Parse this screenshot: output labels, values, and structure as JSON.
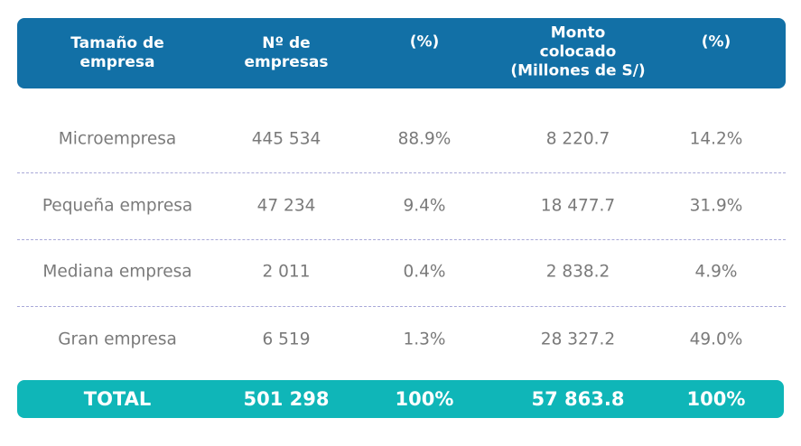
{
  "colors": {
    "header": "#1270a6",
    "total": "#0fb6b8",
    "text": "#7a7a7a",
    "divider": "#a8a8d8"
  },
  "headers": [
    [
      "Tamaño de",
      "empresa"
    ],
    [
      "Nº de",
      "empresas"
    ],
    [
      "(%)"
    ],
    [
      "Monto",
      "colocado",
      "(Millones de S/)"
    ],
    [
      "(%)"
    ]
  ],
  "rows": [
    [
      "Microempresa",
      "445 534",
      "88.9%",
      "8 220.7",
      "14.2%"
    ],
    [
      "Pequeña empresa",
      "47 234",
      "9.4%",
      "18 477.7",
      "31.9%"
    ],
    [
      "Mediana empresa",
      "2 011",
      "0.4%",
      "2 838.2",
      "4.9%"
    ],
    [
      "Gran empresa",
      "6 519",
      "1.3%",
      "28 327.2",
      "49.0%"
    ]
  ],
  "total": [
    "TOTAL",
    "501 298",
    "100%",
    "57 863.8",
    "100%"
  ]
}
